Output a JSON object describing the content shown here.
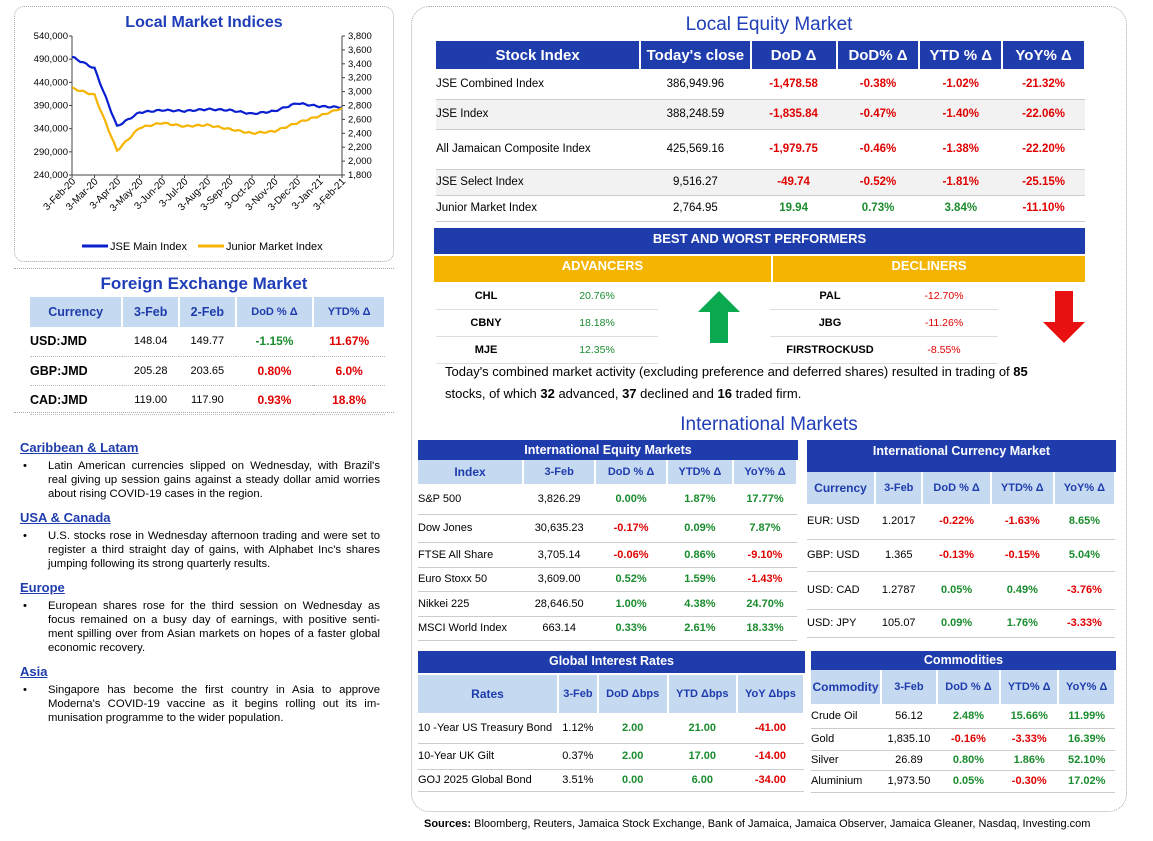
{
  "local_indices": {
    "title": "Local Market Indices",
    "chart_data": {
      "type": "line",
      "title": "Local Market Indices",
      "x": [
        "3-Feb-20",
        "3-Mar-20",
        "3-Apr-20",
        "3-May-20",
        "3-Jun-20",
        "3-Jul-20",
        "3-Aug-20",
        "3-Sep-20",
        "3-Oct-20",
        "3-Nov-20",
        "3-Dec-20",
        "3-Jan-21",
        "3-Feb-21"
      ],
      "y_left_ticks": [
        "540,000",
        "490,000",
        "440,000",
        "390,000",
        "340,000",
        "290,000",
        "240,000"
      ],
      "y_right_ticks": [
        "3,800",
        "3,600",
        "3,400",
        "3,200",
        "3,000",
        "2,800",
        "2,600",
        "2,400",
        "2,200",
        "2,000",
        "1,800"
      ],
      "ylim_left": [
        240000,
        540000
      ],
      "ylim_right": [
        1800,
        3800
      ],
      "series": [
        {
          "name": "JSE Main Index",
          "axis": "left",
          "color": "#0a1fd0",
          "values": [
            495000,
            470000,
            345000,
            375000,
            380000,
            378000,
            382000,
            380000,
            372000,
            378000,
            395000,
            388000,
            386000
          ]
        },
        {
          "name": "Junior Market Index",
          "axis": "right",
          "color": "#f5b400",
          "values": [
            3050,
            2950,
            2150,
            2480,
            2550,
            2500,
            2520,
            2460,
            2400,
            2430,
            2550,
            2650,
            2765
          ]
        }
      ]
    }
  },
  "fx": {
    "title": "Foreign Exchange Market",
    "headers": [
      "Currency",
      "3-Feb",
      "2-Feb",
      "DoD % Δ",
      "YTD% Δ"
    ],
    "rows": [
      {
        "c": "USD:JMD",
        "a": "148.04",
        "b": "149.77",
        "d": "-1.15%",
        "y": "11.67%",
        "ds": "pos",
        "ys": "neg"
      },
      {
        "c": "GBP:JMD",
        "a": "205.28",
        "b": "203.65",
        "d": "0.80%",
        "y": "6.0%",
        "ds": "neg",
        "ys": "neg"
      },
      {
        "c": "CAD:JMD",
        "a": "119.00",
        "b": "117.90",
        "d": "0.93%",
        "y": "18.8%",
        "ds": "neg",
        "ys": "neg"
      }
    ]
  },
  "news": [
    {
      "h": "Caribbean & Latam",
      "t": "Latin American currencies slipped on Wednesday, with Brazil's real giving up session gains against a steady dollar amid worries about rising COVID-19 cases in the region."
    },
    {
      "h": "USA & Canada",
      "t": "U.S. stocks rose in Wednesday afternoon trading and were set to register a third straight day of gains, with Alphabet Inc's shares jumping following its strong quarterly results."
    },
    {
      "h": "Europe",
      "t": "European shares rose for the third session on Wednesday as focus remained on a busy day of earnings, with positive senti-ment spilling over from Asian markets on hopes of a faster global economic recovery."
    },
    {
      "h": "Asia",
      "t": "Singapore has become the first country in Asia to approve Moderna's COVID-19 vaccine as it begins rolling out its im-munisation programme to the wider population."
    }
  ],
  "equity": {
    "title": "Local Equity Market",
    "headers": [
      "Stock Index",
      "Today's close",
      "DoD  Δ",
      "DoD% Δ",
      "YTD % Δ",
      "YoY% Δ"
    ],
    "rows": [
      {
        "n": "JSE Combined Index",
        "c": "386,949.96",
        "d": "-1,478.58",
        "p": "-0.38%",
        "y": "-1.02%",
        "o": "-21.32%",
        "s": "neg"
      },
      {
        "n": "JSE Index",
        "c": "388,248.59",
        "d": "-1,835.84",
        "p": "-0.47%",
        "y": "-1.40%",
        "o": "-22.06%",
        "s": "neg"
      },
      {
        "n": "All Jamaican Composite Index",
        "c": "425,569.16",
        "d": "-1,979.75",
        "p": "-0.46%",
        "y": "-1.38%",
        "o": "-22.20%",
        "s": "neg"
      },
      {
        "n": "JSE Select Index",
        "c": "9,516.27",
        "d": "-49.74",
        "p": "-0.52%",
        "y": "-1.81%",
        "o": "-25.15%",
        "s": "neg"
      },
      {
        "n": "Junior Market Index",
        "c": "2,764.95",
        "d": "19.94",
        "p": "0.73%",
        "y": "3.84%",
        "o": "-11.10%",
        "s": "pos"
      }
    ],
    "bw_title": "BEST AND WORST PERFORMERS",
    "adv_label": "ADVANCERS",
    "dec_label": "DECLINERS",
    "advancers": [
      {
        "n": "CHL",
        "v": "20.76%"
      },
      {
        "n": "CBNY",
        "v": "18.18%"
      },
      {
        "n": "MJE",
        "v": "12.35%"
      }
    ],
    "decliners": [
      {
        "n": "PAL",
        "v": "-12.70%"
      },
      {
        "n": "JBG",
        "v": "-11.26%"
      },
      {
        "n": "FIRSTROCKUSD",
        "v": "-8.55%"
      }
    ],
    "summary": [
      "Today's combined market activity (excluding preference and deferred shares) resulted in trading of ",
      "85",
      " stocks, of which ",
      "32",
      " advanced, ",
      "37",
      " declined and ",
      "16",
      " traded firm."
    ]
  },
  "intl": {
    "title": "International Markets",
    "eq_title": "International Equity Markets",
    "eq_headers": [
      "Index",
      "3-Feb",
      "DoD % Δ",
      "YTD% Δ",
      "YoY% Δ"
    ],
    "eq_rows": [
      {
        "n": "S&P 500",
        "v": "3,826.29",
        "d": "0.00%",
        "y": "1.87%",
        "o": "17.77%",
        "ds": "pos",
        "ys": "pos",
        "os": "pos"
      },
      {
        "n": "Dow Jones",
        "v": "30,635.23",
        "d": "-0.17%",
        "y": "0.09%",
        "o": "7.87%",
        "ds": "neg",
        "ys": "pos",
        "os": "pos"
      },
      {
        "n": "FTSE All Share",
        "v": "3,705.14",
        "d": "-0.06%",
        "y": "0.86%",
        "o": "-9.10%",
        "ds": "neg",
        "ys": "pos",
        "os": "neg"
      },
      {
        "n": "Euro Stoxx 50",
        "v": "3,609.00",
        "d": "0.52%",
        "y": "1.59%",
        "o": "-1.43%",
        "ds": "pos",
        "ys": "pos",
        "os": "neg"
      },
      {
        "n": "Nikkei 225",
        "v": "28,646.50",
        "d": "1.00%",
        "y": "4.38%",
        "o": "24.70%",
        "ds": "pos",
        "ys": "pos",
        "os": "pos"
      },
      {
        "n": "MSCI World Index",
        "v": "663.14",
        "d": "0.33%",
        "y": "2.61%",
        "o": "18.33%",
        "ds": "pos",
        "ys": "pos",
        "os": "pos"
      }
    ],
    "cur_title": "International Currency Market",
    "cur_headers": [
      "Currency",
      "3-Feb",
      "DoD % Δ",
      "YTD% Δ",
      "YoY% Δ"
    ],
    "cur_rows": [
      {
        "n": "EUR: USD",
        "v": "1.2017",
        "d": "-0.22%",
        "y": "-1.63%",
        "o": "8.65%",
        "ds": "neg",
        "ys": "neg",
        "os": "pos"
      },
      {
        "n": "GBP: USD",
        "v": "1.365",
        "d": "-0.13%",
        "y": "-0.15%",
        "o": "5.04%",
        "ds": "neg",
        "ys": "neg",
        "os": "pos"
      },
      {
        "n": "USD: CAD",
        "v": "1.2787",
        "d": "0.05%",
        "y": "0.49%",
        "o": "-3.76%",
        "ds": "pos",
        "ys": "pos",
        "os": "neg"
      },
      {
        "n": "USD: JPY",
        "v": "105.07",
        "d": "0.09%",
        "y": "1.76%",
        "o": "-3.33%",
        "ds": "pos",
        "ys": "pos",
        "os": "neg"
      }
    ],
    "rate_title": "Global Interest Rates",
    "rate_headers": [
      "Rates",
      "3-Feb",
      "DoD Δbps",
      "YTD Δbps",
      "YoY Δbps"
    ],
    "rate_rows": [
      {
        "n": "10 -Year US Treasury Bond",
        "v": "1.12%",
        "d": "2.00",
        "y": "21.00",
        "o": "-41.00",
        "ds": "pos",
        "ys": "pos",
        "os": "neg"
      },
      {
        "n": "10-Year UK Gilt",
        "v": "0.37%",
        "d": "2.00",
        "y": "17.00",
        "o": "-14.00",
        "ds": "pos",
        "ys": "pos",
        "os": "neg"
      },
      {
        "n": "GOJ 2025 Global Bond",
        "v": "3.51%",
        "d": "0.00",
        "y": "6.00",
        "o": "-34.00",
        "ds": "pos",
        "ys": "pos",
        "os": "neg"
      }
    ],
    "com_title": "Commodities",
    "com_headers": [
      "Commodity",
      "3-Feb",
      "DoD % Δ",
      "YTD% Δ",
      "YoY% Δ"
    ],
    "com_rows": [
      {
        "n": "Crude Oil",
        "v": "56.12",
        "d": "2.48%",
        "y": "15.66%",
        "o": "11.99%",
        "ds": "pos",
        "ys": "pos",
        "os": "pos"
      },
      {
        "n": "Gold",
        "v": "1,835.10",
        "d": "-0.16%",
        "y": "-3.33%",
        "o": "16.39%",
        "ds": "neg",
        "ys": "neg",
        "os": "pos"
      },
      {
        "n": "Silver",
        "v": "26.89",
        "d": "0.80%",
        "y": "1.86%",
        "o": "52.10%",
        "ds": "pos",
        "ys": "pos",
        "os": "pos"
      },
      {
        "n": "Aluminium",
        "v": "1,973.50",
        "d": "0.05%",
        "y": "-0.30%",
        "o": "17.02%",
        "ds": "pos",
        "ys": "neg",
        "os": "pos"
      }
    ]
  },
  "sources": {
    "label": "Sources:",
    "text": " Bloomberg, Reuters, Jamaica Stock Exchange, Bank of Jamaica, Jamaica Observer, Jamaica Gleaner, Nasdaq, Investing.com"
  },
  "colors": {
    "navy": "#1f3cad",
    "light": "#c5d9f1",
    "gold": "#f5b400",
    "green": "#1a8c2e",
    "red": "#e00000"
  }
}
